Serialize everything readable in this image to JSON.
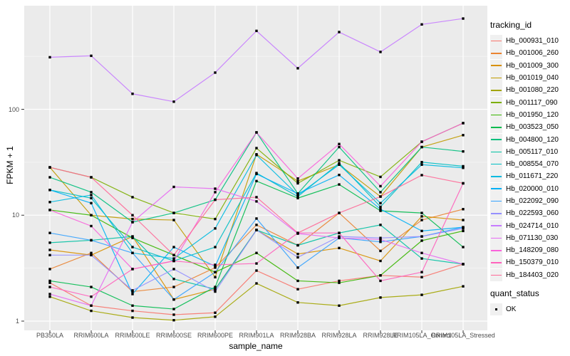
{
  "chart_data": {
    "type": "line",
    "title": "",
    "xlabel": "sample_name",
    "ylabel": "FPKM + 1",
    "yscale": "log10",
    "y_ticks": [
      1,
      10,
      100
    ],
    "ylim": [
      0.8,
      950
    ],
    "grid": true,
    "panel_color": "#EBEBEB",
    "grid_color": "#FFFFFF",
    "marker": "black-square",
    "marker_color": "#000000",
    "legend_title": "tracking_id",
    "legend_position": "right",
    "point_legend": {
      "title": "quant_status",
      "items": [
        {
          "label": "OK",
          "marker": "black-square"
        }
      ]
    },
    "categories": [
      "PB350LA",
      "RRIM600LA",
      "RRIM600LE",
      "RRIM600SE",
      "RRIM600PE",
      "RRIM901LA",
      "RRIM928BA",
      "RRIM928LA",
      "RRIM928LE",
      "RRIM105LA_Control",
      "RRIM105LA_Stressed"
    ],
    "series": [
      {
        "name": "Hb_000931_010",
        "color": "#F8766D",
        "values": [
          2.3,
          1.4,
          1.25,
          1.15,
          1.2,
          3.0,
          2.0,
          2.4,
          2.7,
          2.6,
          3.45
        ]
      },
      {
        "name": "Hb_001006_260",
        "color": "#EA8331",
        "values": [
          3.1,
          4.4,
          1.9,
          2.1,
          3.2,
          8.1,
          5.2,
          10.5,
          4.6,
          9.0,
          11.4
        ]
      },
      {
        "name": "Hb_001009_300",
        "color": "#D89000",
        "values": [
          4.7,
          4.2,
          6.3,
          1.6,
          2.0,
          7.25,
          4.3,
          4.9,
          3.7,
          9.75,
          9.0
        ]
      },
      {
        "name": "Hb_001019_040",
        "color": "#C09B00",
        "values": [
          28.3,
          10,
          9.2,
          9.0,
          2.6,
          37.6,
          21,
          30,
          15,
          44,
          57
        ]
      },
      {
        "name": "Hb_001080_220",
        "color": "#A3A500",
        "values": [
          1.7,
          1.25,
          1.08,
          1.02,
          1.1,
          2.27,
          1.5,
          1.4,
          1.67,
          1.77,
          2.13
        ]
      },
      {
        "name": "Hb_001117_090",
        "color": "#7CAE00",
        "values": [
          28.3,
          22.8,
          14.8,
          10.5,
          9.2,
          43,
          20,
          33,
          23,
          49.4,
          74
        ]
      },
      {
        "name": "Hb_001950_120",
        "color": "#39B600",
        "values": [
          11.2,
          10,
          6.1,
          4.2,
          2.9,
          4.4,
          2.4,
          2.3,
          2.7,
          5.75,
          7.1
        ]
      },
      {
        "name": "Hb_003523_050",
        "color": "#00BB4E",
        "values": [
          2.4,
          2.1,
          1.4,
          1.3,
          2.1,
          21,
          14.5,
          19.5,
          11,
          10.5,
          5.0
        ]
      },
      {
        "name": "Hb_004800_120",
        "color": "#00BF7D",
        "values": [
          22.8,
          16.5,
          8.6,
          10.5,
          14,
          60.5,
          16,
          44,
          16.5,
          44,
          40
        ]
      },
      {
        "name": "Hb_005117_010",
        "color": "#00C1A3",
        "values": [
          5.5,
          5.8,
          6.3,
          2.5,
          2.0,
          7.25,
          5.2,
          6.8,
          8.1,
          3.9,
          3.45
        ]
      },
      {
        "name": "Hb_008554_070",
        "color": "#00BFC4",
        "values": [
          17.3,
          14.5,
          5.0,
          3.7,
          5.0,
          25,
          15,
          31,
          12,
          31.7,
          29
        ]
      },
      {
        "name": "Hb_011671_220",
        "color": "#00BAE0",
        "values": [
          13.3,
          15.5,
          4.4,
          3.9,
          7.5,
          37,
          15.5,
          30,
          13,
          30,
          28
        ]
      },
      {
        "name": "Hb_020000_010",
        "color": "#00B0F6",
        "values": [
          17.3,
          13,
          1.8,
          5.0,
          3.3,
          24.5,
          16,
          24,
          11.4,
          7.1,
          7.7
        ]
      },
      {
        "name": "Hb_022092_090",
        "color": "#35A2FF",
        "values": [
          6.8,
          5.8,
          4.4,
          1.6,
          2.9,
          9.3,
          3.2,
          6.1,
          5.6,
          6.3,
          7.7
        ]
      },
      {
        "name": "Hb_022593_060",
        "color": "#9590FF",
        "values": [
          4.2,
          4.2,
          1.95,
          3.1,
          1.9,
          7.25,
          4.0,
          6.3,
          6.1,
          6.3,
          7.5
        ]
      },
      {
        "name": "Hb_024714_010",
        "color": "#C77CFF",
        "values": [
          310,
          320,
          140,
          118,
          222,
          550,
          244,
          536,
          348,
          633,
          719
        ]
      },
      {
        "name": "Hb_071130_030",
        "color": "#E76BF3",
        "values": [
          1.8,
          1.4,
          8.6,
          18.5,
          17.8,
          13.5,
          6.7,
          6.1,
          5.9,
          4.4,
          3.45
        ]
      },
      {
        "name": "Hb_148209_080",
        "color": "#FA62DB",
        "values": [
          11.2,
          7.9,
          3.1,
          3.7,
          16.5,
          60.5,
          22.2,
          47,
          18.8,
          49.4,
          74
        ]
      },
      {
        "name": "Hb_150379_010",
        "color": "#FF62BC",
        "values": [
          2.1,
          1.7,
          3.1,
          3.7,
          3.4,
          3.5,
          6.8,
          6.8,
          2.4,
          2.9,
          20
        ]
      },
      {
        "name": "Hb_184403_020",
        "color": "#FF6A98",
        "values": [
          28.3,
          22.8,
          10,
          4.2,
          14,
          14.8,
          6.8,
          10.5,
          15,
          23.9,
          20
        ]
      }
    ]
  }
}
